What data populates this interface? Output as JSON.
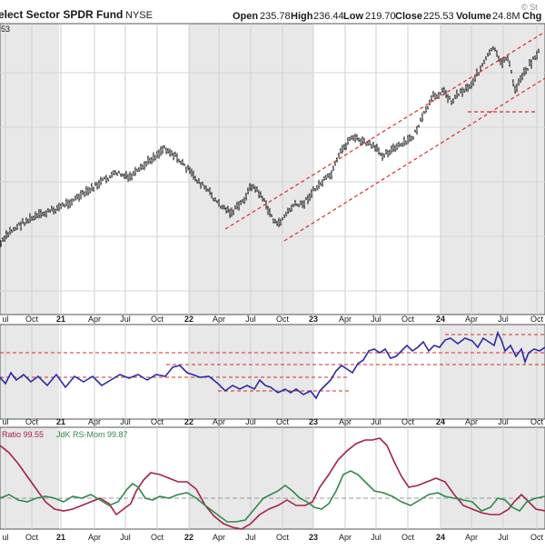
{
  "header": {
    "title": "elect Sector SPDR Fund",
    "exchange": "NYSE",
    "open_label": "Open",
    "open": "235.78",
    "high_label": "High",
    "high": "236.44",
    "low_label": "Low",
    "low": "219.70",
    "close_label": "Close",
    "close": "225.53",
    "volume_label": "Volume",
    "volume": "24.8M",
    "chg_label": "Chg",
    "watermark": "© St",
    "corner_value": "53"
  },
  "colors": {
    "price": "#1a1a1a",
    "ratio": "#2a2aa8",
    "rs_ratio": "#a8204a",
    "rs_mom": "#2f8a4a",
    "channel": "#dd2a2a",
    "band": "#e8e8e8"
  },
  "chart_data": [
    {
      "type": "ohlc",
      "panel": "price",
      "x_ticks": [
        "ul",
        "Oct",
        "21",
        "Apr",
        "Jul",
        "Oct",
        "22",
        "Apr",
        "Jul",
        "Oct",
        "23",
        "Apr",
        "Jul",
        "Oct",
        "24",
        "Apr",
        "Jul",
        "Oct"
      ],
      "year_ticks": [
        "21",
        "22",
        "23",
        "24"
      ],
      "keypoints": [
        [
          0,
          268
        ],
        [
          5,
          255
        ],
        [
          12,
          245
        ],
        [
          20,
          238
        ],
        [
          30,
          230
        ],
        [
          38,
          222
        ],
        [
          47,
          212
        ],
        [
          56,
          199
        ],
        [
          64,
          190
        ],
        [
          70,
          196
        ],
        [
          76,
          188
        ],
        [
          82,
          176
        ],
        [
          86,
          170
        ],
        [
          90,
          162
        ],
        [
          95,
          170
        ],
        [
          101,
          182
        ],
        [
          107,
          196
        ],
        [
          114,
          210
        ],
        [
          120,
          225
        ],
        [
          127,
          234
        ],
        [
          133,
          222
        ],
        [
          138,
          204
        ],
        [
          143,
          214
        ],
        [
          148,
          234
        ],
        [
          152,
          248
        ],
        [
          156,
          238
        ],
        [
          161,
          226
        ],
        [
          166,
          225
        ],
        [
          172,
          210
        ],
        [
          176,
          202
        ],
        [
          182,
          192
        ],
        [
          187,
          168
        ],
        [
          193,
          150
        ],
        [
          198,
          155
        ],
        [
          204,
          160
        ],
        [
          210,
          170
        ],
        [
          216,
          164
        ],
        [
          222,
          158
        ],
        [
          227,
          150
        ],
        [
          232,
          130
        ],
        [
          238,
          106
        ],
        [
          244,
          100
        ],
        [
          248,
          112
        ],
        [
          252,
          102
        ],
        [
          258,
          95
        ],
        [
          262,
          82
        ],
        [
          268,
          62
        ],
        [
          271,
          52
        ],
        [
          275,
          70
        ],
        [
          279,
          62
        ],
        [
          283,
          100
        ],
        [
          287,
          82
        ],
        [
          290,
          74
        ],
        [
          294,
          62
        ],
        [
          296,
          58
        ]
      ],
      "channel_lines": [
        {
          "x1": 248,
          "y1": 252,
          "x2": 600,
          "y2": 35
        },
        {
          "x1": 313,
          "y1": 265,
          "x2": 600,
          "y2": 86
        }
      ],
      "support_line": {
        "x1": 515,
        "y1": 123,
        "x2": 592,
        "y2": 123
      }
    },
    {
      "type": "line",
      "panel": "relative-strength",
      "series": [
        {
          "values": [
            [
              0,
              415
            ],
            [
              6,
              422
            ],
            [
              12,
              410
            ],
            [
              18,
              418
            ],
            [
              26,
              412
            ],
            [
              34,
              420
            ],
            [
              42,
              414
            ],
            [
              52,
              424
            ],
            [
              62,
              412
            ],
            [
              72,
              426
            ],
            [
              82,
              414
            ],
            [
              92,
              420
            ],
            [
              102,
              414
            ],
            [
              112,
              424
            ],
            [
              122,
              418
            ],
            [
              132,
              412
            ],
            [
              142,
              416
            ],
            [
              152,
              412
            ],
            [
              162,
              418
            ],
            [
              172,
              412
            ],
            [
              182,
              414
            ],
            [
              190,
              404
            ],
            [
              198,
              402
            ],
            [
              206,
              410
            ],
            [
              212,
              412
            ],
            [
              220,
              415
            ],
            [
              230,
              414
            ],
            [
              240,
              422
            ],
            [
              248,
              430
            ],
            [
              256,
              424
            ],
            [
              264,
              428
            ],
            [
              272,
              424
            ],
            [
              280,
              428
            ],
            [
              286,
              418
            ],
            [
              292,
              424
            ],
            [
              298,
              426
            ],
            [
              306,
              432
            ],
            [
              314,
              428
            ],
            [
              320,
              432
            ],
            [
              326,
              428
            ],
            [
              334,
              434
            ],
            [
              342,
              430
            ],
            [
              348,
              438
            ],
            [
              352,
              430
            ],
            [
              358,
              424
            ],
            [
              364,
              418
            ],
            [
              370,
              408
            ],
            [
              376,
              402
            ],
            [
              382,
              406
            ],
            [
              388,
              410
            ],
            [
              394,
              400
            ],
            [
              400,
              396
            ],
            [
              406,
              386
            ],
            [
              412,
              384
            ],
            [
              418,
              388
            ],
            [
              424,
              384
            ],
            [
              430,
              394
            ],
            [
              436,
              392
            ],
            [
              442,
              386
            ],
            [
              448,
              380
            ],
            [
              454,
              386
            ],
            [
              460,
              382
            ],
            [
              466,
              376
            ],
            [
              472,
              386
            ],
            [
              478,
              380
            ],
            [
              484,
              382
            ],
            [
              490,
              374
            ],
            [
              496,
              372
            ],
            [
              504,
              378
            ],
            [
              512,
              372
            ],
            [
              520,
              375
            ],
            [
              526,
              382
            ],
            [
              532,
              372
            ],
            [
              538,
              376
            ],
            [
              544,
              380
            ],
            [
              548,
              366
            ],
            [
              552,
              374
            ],
            [
              556,
              386
            ],
            [
              562,
              380
            ],
            [
              568,
              392
            ],
            [
              574,
              384
            ],
            [
              578,
              398
            ],
            [
              582,
              388
            ],
            [
              588,
              384
            ],
            [
              594,
              386
            ],
            [
              600,
              382
            ]
          ]
        }
      ],
      "ref_lines": [
        {
          "x1": 0,
          "y1": 388,
          "x2": 600,
          "y2": 388
        },
        {
          "x1": 0,
          "y1": 415,
          "x2": 385,
          "y2": 415
        },
        {
          "x1": 183,
          "y1": 401,
          "x2": 600,
          "y2": 401
        },
        {
          "x1": 240,
          "y1": 430,
          "x2": 385,
          "y2": 430
        },
        {
          "x1": 490,
          "y1": 368,
          "x2": 600,
          "y2": 368
        }
      ]
    },
    {
      "type": "line",
      "panel": "rrg",
      "label_ratio": "Ratio 99.55",
      "label_mom": "JdK RS-Mom 99.87",
      "series": [
        {
          "name": "RS-Ratio",
          "values": [
            [
              0,
              490
            ],
            [
              10,
              498
            ],
            [
              20,
              510
            ],
            [
              30,
              524
            ],
            [
              40,
              538
            ],
            [
              50,
              552
            ],
            [
              60,
              560
            ],
            [
              70,
              562
            ],
            [
              80,
              560
            ],
            [
              90,
              556
            ],
            [
              100,
              552
            ],
            [
              110,
              548
            ],
            [
              120,
              554
            ],
            [
              128,
              566
            ],
            [
              136,
              560
            ],
            [
              144,
              554
            ],
            [
              150,
              540
            ],
            [
              158,
              528
            ],
            [
              166,
              520
            ],
            [
              176,
              522
            ],
            [
              186,
              526
            ],
            [
              196,
              530
            ],
            [
              206,
              530
            ],
            [
              216,
              538
            ],
            [
              226,
              556
            ],
            [
              236,
              568
            ],
            [
              246,
              576
            ],
            [
              256,
              580
            ],
            [
              266,
              582
            ],
            [
              276,
              576
            ],
            [
              286,
              566
            ],
            [
              296,
              560
            ],
            [
              306,
              556
            ],
            [
              316,
              550
            ],
            [
              326,
              556
            ],
            [
              336,
              556
            ],
            [
              344,
              552
            ],
            [
              352,
              536
            ],
            [
              362,
              522
            ],
            [
              372,
              506
            ],
            [
              382,
              496
            ],
            [
              392,
              488
            ],
            [
              402,
              484
            ],
            [
              410,
              484
            ],
            [
              418,
              482
            ],
            [
              426,
              490
            ],
            [
              434,
              508
            ],
            [
              442,
              524
            ],
            [
              450,
              536
            ],
            [
              460,
              534
            ],
            [
              470,
              530
            ],
            [
              480,
              526
            ],
            [
              490,
              530
            ],
            [
              500,
              544
            ],
            [
              510,
              556
            ],
            [
              520,
              560
            ],
            [
              530,
              564
            ],
            [
              540,
              566
            ],
            [
              550,
              566
            ],
            [
              560,
              560
            ],
            [
              566,
              552
            ],
            [
              574,
              544
            ],
            [
              582,
              552
            ],
            [
              590,
              560
            ],
            [
              600,
              562
            ]
          ]
        },
        {
          "name": "RS-Mom",
          "values": [
            [
              0,
              548
            ],
            [
              10,
              544
            ],
            [
              20,
              550
            ],
            [
              30,
              552
            ],
            [
              40,
              548
            ],
            [
              50,
              546
            ],
            [
              60,
              548
            ],
            [
              70,
              552
            ],
            [
              80,
              546
            ],
            [
              90,
              548
            ],
            [
              100,
              544
            ],
            [
              110,
              550
            ],
            [
              120,
              556
            ],
            [
              130,
              552
            ],
            [
              140,
              538
            ],
            [
              146,
              532
            ],
            [
              152,
              536
            ],
            [
              160,
              548
            ],
            [
              168,
              550
            ],
            [
              176,
              546
            ],
            [
              186,
              548
            ],
            [
              196,
              544
            ],
            [
              206,
              542
            ],
            [
              216,
              548
            ],
            [
              226,
              556
            ],
            [
              234,
              562
            ],
            [
              242,
              568
            ],
            [
              250,
              574
            ],
            [
              260,
              574
            ],
            [
              270,
              572
            ],
            [
              280,
              560
            ],
            [
              290,
              548
            ],
            [
              298,
              544
            ],
            [
              306,
              540
            ],
            [
              314,
              534
            ],
            [
              322,
              540
            ],
            [
              330,
              548
            ],
            [
              338,
              552
            ],
            [
              346,
              558
            ],
            [
              354,
              560
            ],
            [
              362,
              554
            ],
            [
              370,
              540
            ],
            [
              378,
              522
            ],
            [
              386,
              518
            ],
            [
              394,
              522
            ],
            [
              402,
              530
            ],
            [
              412,
              540
            ],
            [
              422,
              542
            ],
            [
              432,
              546
            ],
            [
              442,
              552
            ],
            [
              452,
              556
            ],
            [
              462,
              550
            ],
            [
              472,
              544
            ],
            [
              482,
              542
            ],
            [
              490,
              546
            ],
            [
              500,
              548
            ],
            [
              510,
              550
            ],
            [
              520,
              552
            ],
            [
              530,
              562
            ],
            [
              540,
              558
            ],
            [
              548,
              548
            ],
            [
              556,
              550
            ],
            [
              564,
              558
            ],
            [
              572,
              562
            ],
            [
              580,
              552
            ],
            [
              590,
              548
            ],
            [
              600,
              546
            ]
          ]
        }
      ],
      "ref_lines": [
        {
          "x1": 0,
          "y1": 548,
          "x2": 600,
          "y2": 548
        }
      ]
    }
  ]
}
